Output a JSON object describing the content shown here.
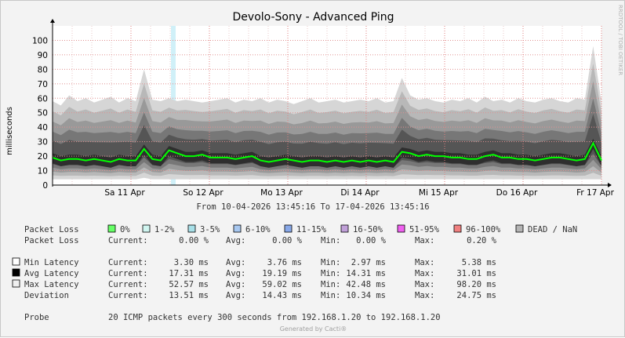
{
  "title": "Devolo-Sony - Advanced Ping",
  "watermark": "RRDTOOL / TOBI OETIKER",
  "footer": "Generated by Cacti®",
  "chart_data": {
    "type": "area",
    "title": "Devolo-Sony - Advanced Ping",
    "ylabel": "milliseconds",
    "xlabel": "",
    "ylim": [
      0,
      110
    ],
    "y_ticks": [
      0,
      10,
      20,
      30,
      40,
      50,
      60,
      70,
      80,
      90,
      100
    ],
    "x_tick_labels": [
      "Sa 11 Apr",
      "So 12 Apr",
      "Mo 13 Apr",
      "Di 14 Apr",
      "Mi 15 Apr",
      "Do 16 Apr",
      "Fr 17 Apr"
    ],
    "x_range_label": "From 10-04-2026 13:45:16 To 17-04-2026 13:45:16",
    "grid": true,
    "series": [
      {
        "name": "Avg Latency",
        "color": "#00ff00",
        "values": [
          19,
          17,
          18,
          18,
          17,
          18,
          17,
          16,
          18,
          17,
          17,
          25,
          18,
          17,
          24,
          22,
          20,
          20,
          21,
          19,
          19,
          19,
          18,
          19,
          20,
          17,
          16,
          17,
          18,
          17,
          16,
          17,
          17,
          16,
          17,
          16,
          17,
          16,
          17,
          16,
          17,
          16,
          23,
          22,
          20,
          21,
          20,
          20,
          19,
          19,
          18,
          18,
          20,
          21,
          19,
          19,
          18,
          18,
          17,
          18,
          19,
          19,
          18,
          17,
          18,
          29,
          17
        ]
      },
      {
        "name": "Max Latency",
        "color": "#c0c0c0",
        "values": [
          58,
          55,
          62,
          58,
          60,
          57,
          59,
          61,
          57,
          60,
          58,
          80,
          59,
          58,
          60,
          58,
          59,
          58,
          57,
          58,
          59,
          60,
          57,
          59,
          58,
          60,
          57,
          59,
          58,
          56,
          58,
          60,
          57,
          58,
          59,
          57,
          58,
          59,
          58,
          60,
          57,
          58,
          74,
          62,
          59,
          60,
          58,
          57,
          59,
          58,
          60,
          57,
          61,
          58,
          59,
          57,
          60,
          58,
          57,
          59,
          60,
          58,
          57,
          60,
          59,
          96,
          57
        ]
      },
      {
        "name": "Min Latency",
        "color": "#f0f0f0",
        "values": [
          4,
          4,
          4,
          4,
          4,
          4,
          4,
          4,
          4,
          4,
          4,
          5,
          4,
          4,
          4,
          4,
          4,
          4,
          4,
          4,
          4,
          4,
          4,
          4,
          4,
          4,
          4,
          4,
          4,
          4,
          4,
          4,
          4,
          4,
          4,
          4,
          4,
          4,
          4,
          4,
          4,
          4,
          4,
          4,
          4,
          4,
          4,
          4,
          4,
          4,
          4,
          4,
          4,
          4,
          4,
          4,
          4,
          4,
          4,
          4,
          4,
          4,
          4,
          4,
          4,
          4,
          4
        ]
      }
    ],
    "packet_loss_events": [
      {
        "label": "Sa 11 Apr to So 12 Apr",
        "severity": "1-2%"
      }
    ]
  },
  "legend": {
    "packet_loss_title": "Packet Loss",
    "buckets": [
      {
        "label": "0%",
        "color": "#66ff66"
      },
      {
        "label": "1-2%",
        "color": "#d0f5f0"
      },
      {
        "label": "3-5%",
        "color": "#a8e0e8"
      },
      {
        "label": "6-10%",
        "color": "#a8c8f0"
      },
      {
        "label": "11-15%",
        "color": "#88a8e8"
      },
      {
        "label": "16-50%",
        "color": "#c0a0d8"
      },
      {
        "label": "51-95%",
        "color": "#f060f0"
      },
      {
        "label": "96-100%",
        "color": "#f08080"
      },
      {
        "label": "DEAD / NaN",
        "color": "#b4b4b4"
      }
    ],
    "stats_rows": [
      {
        "swatch": "",
        "label": "Packet Loss",
        "current": "0.00 %",
        "avg": "0.00 %",
        "min": "0.00 %",
        "max": "0.20 %"
      },
      {
        "swatch": "#ffffff",
        "label": "Min Latency",
        "current": "3.30 ms",
        "avg": "3.76 ms",
        "min": "2.97 ms",
        "max": "5.38 ms"
      },
      {
        "swatch": "#000000",
        "label": "Avg Latency",
        "current": "17.31 ms",
        "avg": "19.19 ms",
        "min": "14.31 ms",
        "max": "31.01 ms"
      },
      {
        "swatch": "#f0f0f0",
        "label": "Max Latency",
        "current": "52.57 ms",
        "avg": "59.02 ms",
        "min": "42.48 ms",
        "max": "98.20 ms"
      },
      {
        "swatch": "",
        "label": "Deviation",
        "current": "13.51 ms",
        "avg": "14.43 ms",
        "min": "10.34 ms",
        "max": "24.75 ms"
      }
    ],
    "stat_labels": {
      "current": "Current:",
      "avg": "Avg:",
      "min": "Min:",
      "max": "Max:"
    },
    "probe_label": "Probe",
    "probe_text": "20 ICMP packets every 300 seconds from 192.168.1.20 to 192.168.1.20"
  }
}
